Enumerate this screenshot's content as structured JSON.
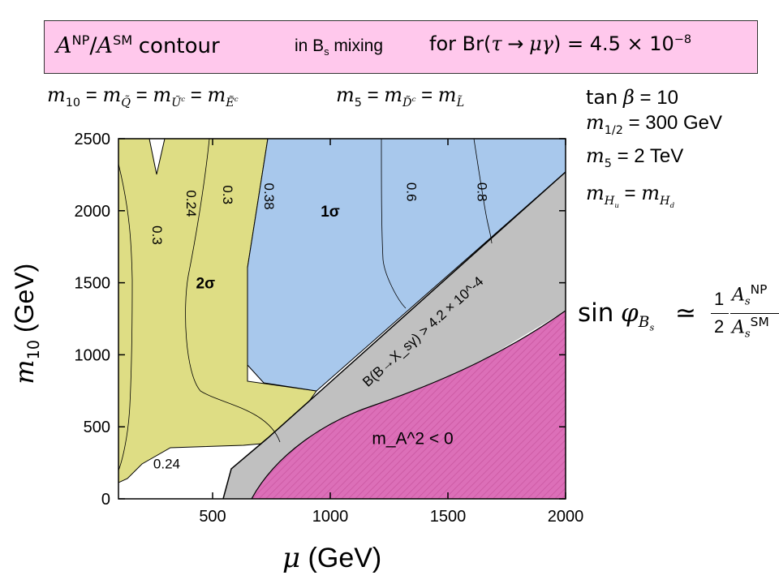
{
  "banner": {
    "part1": "A^NP/A^SM contour",
    "part2": "in B_s mixing",
    "part3": "for Br(τ → μγ) = 4.5 × 10^-8"
  },
  "conditions": {
    "m10_eq": "m_10 = m_Q̃ = m_Ũc = m_Ẽc",
    "m5_eq": "m_5 = m_D̃c = m_L̃",
    "tanb": "tan β = 10",
    "mhalf": "m_1/2 = 300 GeV",
    "m5": "m_5 = 2 TeV",
    "mhu": "m_Hu = m_Hd"
  },
  "sinphi": "sin φ_Bs ≃ (1/2) A_s^NP / A_s^SM",
  "chart_data": {
    "type": "contour",
    "xlabel": "μ (GeV)",
    "ylabel": "m10 (GeV)",
    "xlim": [
      100,
      2000
    ],
    "ylim": [
      0,
      2500
    ],
    "xticks": [
      500,
      1000,
      1500,
      2000
    ],
    "yticks": [
      0,
      500,
      1000,
      1500,
      2000,
      2500
    ],
    "contour_levels": [
      0.24,
      0.3,
      0.38,
      0.6,
      0.8
    ],
    "contour_labels": [
      {
        "text": "0.24",
        "x": 390,
        "y": 2050,
        "rotate": 90
      },
      {
        "text": "0.3",
        "x": 545,
        "y": 2110,
        "rotate": 90
      },
      {
        "text": "0.38",
        "x": 720,
        "y": 2100,
        "rotate": 90
      },
      {
        "text": "0.6",
        "x": 1325,
        "y": 2130,
        "rotate": 90
      },
      {
        "text": "0.8",
        "x": 1625,
        "y": 2130,
        "rotate": 90
      },
      {
        "text": "0.3",
        "x": 245,
        "y": 1830,
        "rotate": 90
      },
      {
        "text": "0.24",
        "x": 305,
        "y": 210,
        "rotate": 0
      }
    ],
    "regions": [
      {
        "name": "1σ",
        "color": "#a8c8ec",
        "label_x": 1000,
        "label_y": 2000
      },
      {
        "name": "2σ",
        "color": "#dedd84",
        "label_x": 470,
        "label_y": 1500
      },
      {
        "name": "B(B → X_s γ) > 4.2 × 10^-4",
        "color": "#c0c0c0"
      },
      {
        "name": "m_A^2 < 0",
        "color": "#dc6fb8",
        "label_x": 1350,
        "label_y": 380
      }
    ],
    "boundary_line": {
      "x": [
        575,
        2000
      ],
      "y": [
        70,
        2270
      ]
    },
    "annotations": {
      "one_sigma": "1σ",
      "two_sigma": "2σ",
      "bsg": "B(B→X_sγ) > 4.2 × 10^-4",
      "ma2": "m_A^2 < 0"
    }
  }
}
